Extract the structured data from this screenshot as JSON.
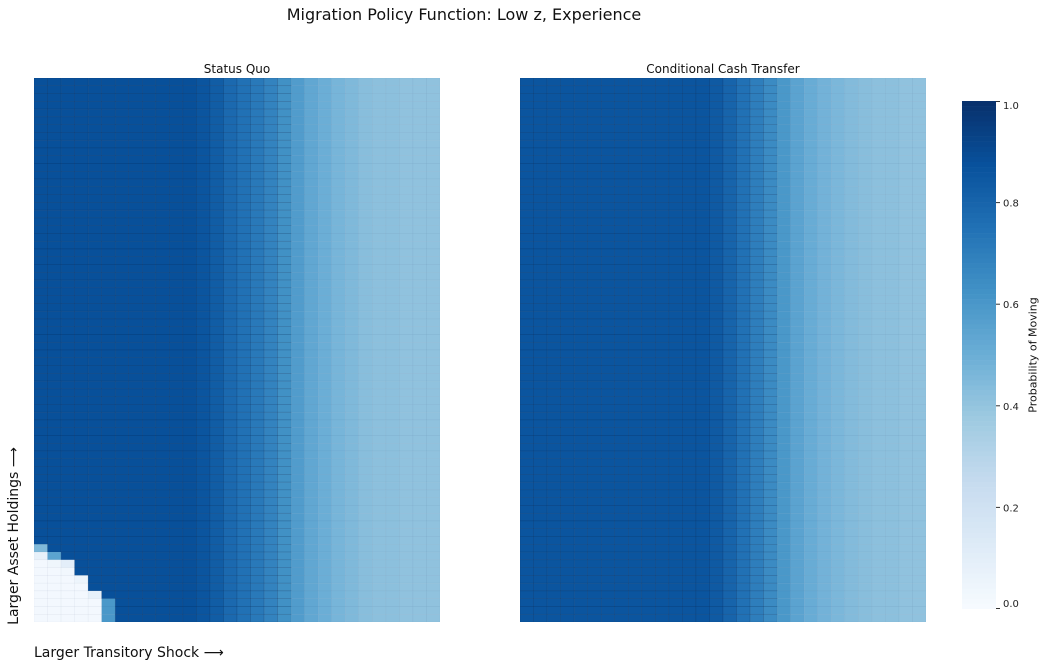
{
  "figure": {
    "suptitle": "Migration Policy Function: Low z, Experience",
    "xlabel": "Larger Transitory Shock ⟶",
    "ylabel": "Larger Asset Holdings ⟶",
    "colorbar_label": "Probability of Moving"
  },
  "colors": {
    "scale": [
      "#f7fbff",
      "#deebf7",
      "#c6dbef",
      "#9ecae1",
      "#6baed6",
      "#4292c6",
      "#2171b5",
      "#08519c",
      "#08306b"
    ],
    "cell_edge": "#0b2a55"
  },
  "chart_data": [
    {
      "type": "heatmap",
      "title": "Status Quo",
      "rows": 70,
      "cols": 30,
      "column_values": [
        0.88,
        0.88,
        0.88,
        0.88,
        0.88,
        0.88,
        0.88,
        0.88,
        0.88,
        0.88,
        0.88,
        0.88,
        0.86,
        0.83,
        0.78,
        0.75,
        0.72,
        0.68,
        0.63,
        0.58,
        0.53,
        0.5,
        0.47,
        0.45,
        0.43,
        0.42,
        0.42,
        0.41,
        0.41,
        0.41
      ],
      "low_asset_mask": [
        {
          "row": 60,
          "col": 0,
          "value": 0.45
        },
        {
          "row": 61,
          "col": 0,
          "value": 0.08
        },
        {
          "row": 61,
          "col": 1,
          "value": 0.55
        },
        {
          "row": 62,
          "col": 0,
          "value": 0.02
        },
        {
          "row": 62,
          "col": 1,
          "value": 0.04
        },
        {
          "row": 62,
          "col": 2,
          "value": 0.1
        },
        {
          "row": 63,
          "col": 0,
          "value": 0.02
        },
        {
          "row": 63,
          "col": 1,
          "value": 0.02
        },
        {
          "row": 63,
          "col": 2,
          "value": 0.03
        },
        {
          "row": 64,
          "col": 0,
          "value": 0.02
        },
        {
          "row": 64,
          "col": 1,
          "value": 0.02
        },
        {
          "row": 64,
          "col": 2,
          "value": 0.02
        },
        {
          "row": 64,
          "col": 3,
          "value": 0.05
        },
        {
          "row": 65,
          "col": 0,
          "value": 0.02
        },
        {
          "row": 65,
          "col": 1,
          "value": 0.02
        },
        {
          "row": 65,
          "col": 2,
          "value": 0.02
        },
        {
          "row": 65,
          "col": 3,
          "value": 0.02
        },
        {
          "row": 66,
          "col": 0,
          "value": 0.02
        },
        {
          "row": 66,
          "col": 1,
          "value": 0.02
        },
        {
          "row": 66,
          "col": 2,
          "value": 0.02
        },
        {
          "row": 66,
          "col": 3,
          "value": 0.02
        },
        {
          "row": 66,
          "col": 4,
          "value": 0.08
        },
        {
          "row": 67,
          "col": 0,
          "value": 0.02
        },
        {
          "row": 67,
          "col": 1,
          "value": 0.02
        },
        {
          "row": 67,
          "col": 2,
          "value": 0.02
        },
        {
          "row": 67,
          "col": 3,
          "value": 0.02
        },
        {
          "row": 67,
          "col": 4,
          "value": 0.02
        },
        {
          "row": 67,
          "col": 5,
          "value": 0.6
        },
        {
          "row": 68,
          "col": 0,
          "value": 0.02
        },
        {
          "row": 68,
          "col": 1,
          "value": 0.02
        },
        {
          "row": 68,
          "col": 2,
          "value": 0.02
        },
        {
          "row": 68,
          "col": 3,
          "value": 0.02
        },
        {
          "row": 68,
          "col": 4,
          "value": 0.02
        },
        {
          "row": 68,
          "col": 5,
          "value": 0.6
        },
        {
          "row": 69,
          "col": 0,
          "value": 0.02
        },
        {
          "row": 69,
          "col": 1,
          "value": 0.02
        },
        {
          "row": 69,
          "col": 2,
          "value": 0.02
        },
        {
          "row": 69,
          "col": 3,
          "value": 0.02
        },
        {
          "row": 69,
          "col": 4,
          "value": 0.02
        },
        {
          "row": 69,
          "col": 5,
          "value": 0.6
        }
      ]
    },
    {
      "type": "heatmap",
      "title": "Conditional Cash Transfer",
      "rows": 70,
      "cols": 30,
      "column_values": [
        0.86,
        0.86,
        0.86,
        0.86,
        0.86,
        0.86,
        0.86,
        0.86,
        0.86,
        0.86,
        0.86,
        0.86,
        0.86,
        0.86,
        0.84,
        0.8,
        0.75,
        0.7,
        0.65,
        0.6,
        0.55,
        0.51,
        0.48,
        0.46,
        0.44,
        0.43,
        0.42,
        0.42,
        0.41,
        0.41
      ],
      "low_asset_mask": []
    }
  ],
  "colorbar": {
    "min": 0.0,
    "max": 1.0,
    "ticks": [
      "0.0",
      "0.2",
      "0.4",
      "0.6",
      "0.8",
      "1.0"
    ]
  }
}
